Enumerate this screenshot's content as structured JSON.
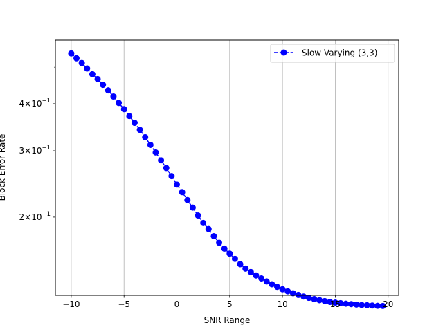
{
  "chart_data": {
    "type": "line",
    "xlabel": "SNR Range",
    "ylabel": "Block Error Rate",
    "y_scale": "log",
    "grid": "x-major",
    "legend_position": "upper right",
    "xlim": [
      -11.5,
      21.0
    ],
    "ylim": [
      0.124,
      0.59
    ],
    "x_ticks": [
      {
        "value": -10,
        "label": "−10"
      },
      {
        "value": -5,
        "label": "−5"
      },
      {
        "value": 0,
        "label": "0"
      },
      {
        "value": 5,
        "label": "5"
      },
      {
        "value": 10,
        "label": "10"
      },
      {
        "value": 15,
        "label": "15"
      },
      {
        "value": 20,
        "label": "20"
      }
    ],
    "y_ticks": [
      {
        "value": 0.2,
        "base": "2",
        "exp": "−1"
      },
      {
        "value": 0.3,
        "base": "3",
        "exp": "−1"
      },
      {
        "value": 0.4,
        "base": "4",
        "exp": "−1"
      }
    ],
    "y_minor_ticks": [
      0.5
    ],
    "series": [
      {
        "name": "Slow Varying (3,3)",
        "color": "#0000ff",
        "marker": "circle",
        "linestyle": "dashed",
        "x": [
          -10.0,
          -9.5,
          -9.0,
          -8.5,
          -8.0,
          -7.5,
          -7.0,
          -6.5,
          -6.0,
          -5.5,
          -5.0,
          -4.5,
          -4.0,
          -3.5,
          -3.0,
          -2.5,
          -2.0,
          -1.5,
          -1.0,
          -0.5,
          0.0,
          0.5,
          1.0,
          1.5,
          2.0,
          2.5,
          3.0,
          3.5,
          4.0,
          4.5,
          5.0,
          5.5,
          6.0,
          6.5,
          7.0,
          7.5,
          8.0,
          8.5,
          9.0,
          9.5,
          10.0,
          10.5,
          11.0,
          11.5,
          12.0,
          12.5,
          13.0,
          13.5,
          14.0,
          14.5,
          15.0,
          15.5,
          16.0,
          16.5,
          17.0,
          17.5,
          18.0,
          18.5,
          19.0,
          19.5
        ],
        "y": [
          0.544,
          0.528,
          0.513,
          0.496,
          0.479,
          0.465,
          0.449,
          0.434,
          0.418,
          0.402,
          0.387,
          0.371,
          0.356,
          0.341,
          0.326,
          0.311,
          0.297,
          0.283,
          0.27,
          0.257,
          0.244,
          0.233,
          0.222,
          0.212,
          0.202,
          0.193,
          0.186,
          0.178,
          0.171,
          0.165,
          0.16,
          0.155,
          0.15,
          0.146,
          0.143,
          0.14,
          0.1375,
          0.135,
          0.1327,
          0.1306,
          0.1287,
          0.1271,
          0.1256,
          0.1243,
          0.1231,
          0.1221,
          0.1212,
          0.1204,
          0.1197,
          0.1191,
          0.1186,
          0.1182,
          0.1178,
          0.1175,
          0.1172,
          0.1169,
          0.1167,
          0.1165,
          0.1163,
          0.1162
        ]
      }
    ]
  }
}
